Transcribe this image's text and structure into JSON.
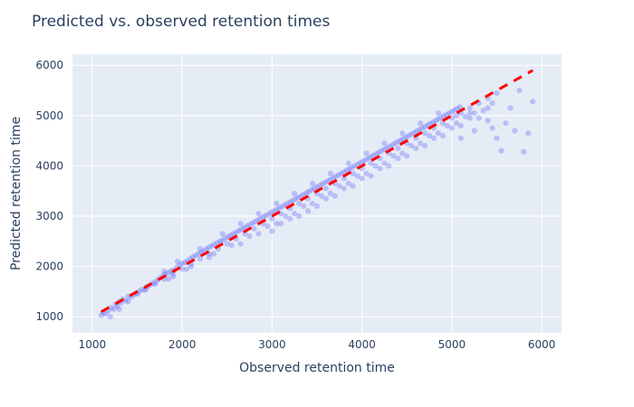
{
  "chart_data": {
    "type": "scatter",
    "title": "Predicted vs. observed retention times",
    "xlabel": "Observed retention time",
    "ylabel": "Predicted retention time",
    "xlim": [
      780,
      6220
    ],
    "ylim": [
      680,
      6220
    ],
    "x_ticks": [
      1000,
      2000,
      3000,
      4000,
      5000,
      6000
    ],
    "y_ticks": [
      1000,
      2000,
      3000,
      4000,
      5000,
      6000
    ],
    "grid": true,
    "legend": "none",
    "series": [
      {
        "type": "scatter",
        "color": "#636efa",
        "opacity": 0.35,
        "points": [
          [
            1100,
            1030
          ],
          [
            1120,
            1080
          ],
          [
            1150,
            1060
          ],
          [
            1180,
            1120
          ],
          [
            1210,
            1180
          ],
          [
            1240,
            1150
          ],
          [
            1260,
            1250
          ],
          [
            1280,
            1210
          ],
          [
            1300,
            1300
          ],
          [
            1320,
            1280
          ],
          [
            1340,
            1350
          ],
          [
            1370,
            1320
          ],
          [
            1400,
            1410
          ],
          [
            1430,
            1390
          ],
          [
            1460,
            1430
          ],
          [
            1490,
            1470
          ],
          [
            1520,
            1500
          ],
          [
            1550,
            1540
          ],
          [
            1580,
            1530
          ],
          [
            1610,
            1600
          ],
          [
            1640,
            1630
          ],
          [
            1670,
            1660
          ],
          [
            1700,
            1690
          ],
          [
            1730,
            1740
          ],
          [
            1760,
            1780
          ],
          [
            1790,
            1820
          ],
          [
            1820,
            1850
          ],
          [
            1850,
            1880
          ],
          [
            1880,
            1910
          ],
          [
            1910,
            1930
          ],
          [
            1940,
            1980
          ],
          [
            1970,
            2020
          ],
          [
            2000,
            2060
          ],
          [
            2030,
            2080
          ],
          [
            2060,
            2110
          ],
          [
            2090,
            2150
          ],
          [
            2120,
            2190
          ],
          [
            2150,
            2220
          ],
          [
            2180,
            2250
          ],
          [
            2210,
            2280
          ],
          [
            2240,
            2310
          ],
          [
            2270,
            2350
          ],
          [
            2300,
            2380
          ],
          [
            2330,
            2410
          ],
          [
            2360,
            2440
          ],
          [
            2390,
            2470
          ],
          [
            2420,
            2500
          ],
          [
            2450,
            2520
          ],
          [
            2480,
            2560
          ],
          [
            2510,
            2590
          ],
          [
            2540,
            2620
          ],
          [
            2570,
            2650
          ],
          [
            2600,
            2680
          ],
          [
            2630,
            2710
          ],
          [
            2660,
            2740
          ],
          [
            2690,
            2770
          ],
          [
            2720,
            2800
          ],
          [
            2750,
            2830
          ],
          [
            2780,
            2860
          ],
          [
            2810,
            2890
          ],
          [
            2840,
            2920
          ],
          [
            2870,
            2950
          ],
          [
            2900,
            2980
          ],
          [
            2930,
            3010
          ],
          [
            2960,
            3040
          ],
          [
            2990,
            3070
          ],
          [
            3020,
            3100
          ],
          [
            3050,
            3130
          ],
          [
            3080,
            3160
          ],
          [
            3110,
            3190
          ],
          [
            3140,
            3220
          ],
          [
            3170,
            3250
          ],
          [
            3200,
            3280
          ],
          [
            3230,
            3310
          ],
          [
            3260,
            3340
          ],
          [
            3290,
            3370
          ],
          [
            3320,
            3400
          ],
          [
            3350,
            3430
          ],
          [
            3380,
            3460
          ],
          [
            3410,
            3490
          ],
          [
            3440,
            3520
          ],
          [
            3470,
            3550
          ],
          [
            3500,
            3580
          ],
          [
            3530,
            3610
          ],
          [
            3560,
            3640
          ],
          [
            3590,
            3670
          ],
          [
            3620,
            3700
          ],
          [
            3650,
            3730
          ],
          [
            3680,
            3760
          ],
          [
            3710,
            3790
          ],
          [
            3740,
            3820
          ],
          [
            3770,
            3850
          ],
          [
            3800,
            3880
          ],
          [
            3830,
            3910
          ],
          [
            3860,
            3940
          ],
          [
            3890,
            3970
          ],
          [
            3920,
            4000
          ],
          [
            3950,
            4030
          ],
          [
            3980,
            4060
          ],
          [
            4010,
            4090
          ],
          [
            4040,
            4120
          ],
          [
            4070,
            4150
          ],
          [
            4100,
            4180
          ],
          [
            4130,
            4210
          ],
          [
            4160,
            4240
          ],
          [
            4190,
            4270
          ],
          [
            4220,
            4300
          ],
          [
            4250,
            4330
          ],
          [
            4280,
            4360
          ],
          [
            4310,
            4390
          ],
          [
            4340,
            4420
          ],
          [
            4370,
            4450
          ],
          [
            4400,
            4480
          ],
          [
            4430,
            4510
          ],
          [
            4460,
            4540
          ],
          [
            4490,
            4570
          ],
          [
            4520,
            4600
          ],
          [
            4550,
            4630
          ],
          [
            4580,
            4660
          ],
          [
            4610,
            4690
          ],
          [
            4640,
            4720
          ],
          [
            4670,
            4750
          ],
          [
            4700,
            4780
          ],
          [
            4730,
            4810
          ],
          [
            4760,
            4840
          ],
          [
            4790,
            4870
          ],
          [
            4820,
            4900
          ],
          [
            4850,
            4930
          ],
          [
            4880,
            4960
          ],
          [
            4910,
            4990
          ],
          [
            4940,
            5020
          ],
          [
            4970,
            5050
          ],
          [
            5000,
            5080
          ],
          [
            5030,
            5110
          ],
          [
            5060,
            5140
          ],
          [
            5090,
            5170
          ],
          [
            1800,
            1900
          ],
          [
            1850,
            1750
          ],
          [
            1950,
            2100
          ],
          [
            2050,
            1950
          ],
          [
            2200,
            2350
          ],
          [
            2300,
            2180
          ],
          [
            2450,
            2650
          ],
          [
            2550,
            2420
          ],
          [
            2650,
            2850
          ],
          [
            2750,
            2600
          ],
          [
            2850,
            3050
          ],
          [
            2950,
            2800
          ],
          [
            3050,
            3250
          ],
          [
            3150,
            3000
          ],
          [
            3250,
            3450
          ],
          [
            3350,
            3200
          ],
          [
            3450,
            3650
          ],
          [
            3550,
            3400
          ],
          [
            3650,
            3850
          ],
          [
            3750,
            3600
          ],
          [
            3850,
            4050
          ],
          [
            3950,
            3800
          ],
          [
            4050,
            4250
          ],
          [
            4150,
            4000
          ],
          [
            4250,
            4450
          ],
          [
            4350,
            4200
          ],
          [
            4450,
            4650
          ],
          [
            4550,
            4400
          ],
          [
            4650,
            4850
          ],
          [
            4750,
            4600
          ],
          [
            4850,
            5050
          ],
          [
            4950,
            4800
          ],
          [
            5050,
            5000
          ],
          [
            5100,
            4550
          ],
          [
            5150,
            4980
          ],
          [
            5200,
            5050
          ],
          [
            5250,
            4700
          ],
          [
            5300,
            4950
          ],
          [
            5350,
            5100
          ],
          [
            5400,
            4900
          ],
          [
            5450,
            4750
          ],
          [
            5500,
            4550
          ],
          [
            5550,
            4300
          ],
          [
            5600,
            4850
          ],
          [
            5650,
            5150
          ],
          [
            5700,
            4700
          ],
          [
            5750,
            5500
          ],
          [
            5800,
            4280
          ],
          [
            5850,
            4650
          ],
          [
            5900,
            5280
          ],
          [
            3200,
            2950
          ],
          [
            3400,
            3100
          ],
          [
            3600,
            3350
          ],
          [
            3800,
            3550
          ],
          [
            4000,
            3750
          ],
          [
            4200,
            3950
          ],
          [
            4400,
            4150
          ],
          [
            4600,
            4350
          ],
          [
            4800,
            4550
          ],
          [
            5000,
            4750
          ],
          [
            5200,
            4950
          ],
          [
            5400,
            5150
          ],
          [
            3000,
            2700
          ],
          [
            3100,
            2850
          ],
          [
            3300,
            3000
          ],
          [
            3500,
            3200
          ],
          [
            3700,
            3400
          ],
          [
            3900,
            3600
          ],
          [
            4100,
            3800
          ],
          [
            4300,
            4000
          ],
          [
            4500,
            4200
          ],
          [
            4700,
            4400
          ],
          [
            4900,
            4600
          ],
          [
            5100,
            4800
          ],
          [
            1900,
            1800
          ],
          [
            2100,
            2000
          ],
          [
            2350,
            2250
          ],
          [
            2650,
            2450
          ],
          [
            2850,
            2650
          ],
          [
            3050,
            2850
          ],
          [
            3250,
            3050
          ],
          [
            3450,
            3250
          ],
          [
            3650,
            3450
          ],
          [
            3850,
            3650
          ],
          [
            4050,
            3850
          ],
          [
            4250,
            4050
          ],
          [
            4450,
            4250
          ],
          [
            4650,
            4450
          ],
          [
            4850,
            4650
          ],
          [
            5050,
            4850
          ],
          [
            5250,
            5050
          ],
          [
            5450,
            5250
          ],
          [
            1200,
            1000
          ],
          [
            1300,
            1150
          ],
          [
            1400,
            1300
          ],
          [
            1500,
            1450
          ],
          [
            1600,
            1550
          ],
          [
            1700,
            1650
          ],
          [
            1800,
            1750
          ],
          [
            1900,
            1850
          ],
          [
            2000,
            1950
          ],
          [
            2100,
            2050
          ],
          [
            2200,
            2150
          ],
          [
            2300,
            2250
          ],
          [
            2400,
            2350
          ],
          [
            2500,
            2450
          ],
          [
            2600,
            2550
          ],
          [
            2700,
            2650
          ],
          [
            2800,
            2750
          ],
          [
            2900,
            2850
          ],
          [
            3000,
            2950
          ],
          [
            3100,
            3050
          ],
          [
            3200,
            3150
          ],
          [
            3300,
            3250
          ],
          [
            3400,
            3350
          ],
          [
            3500,
            3450
          ],
          [
            3600,
            3550
          ],
          [
            3700,
            3650
          ],
          [
            3800,
            3750
          ],
          [
            3900,
            3850
          ],
          [
            4000,
            3950
          ],
          [
            4100,
            4050
          ],
          [
            4200,
            4150
          ],
          [
            4300,
            4250
          ],
          [
            4400,
            4350
          ],
          [
            4500,
            4450
          ],
          [
            4600,
            4550
          ],
          [
            4700,
            4650
          ],
          [
            4800,
            4750
          ],
          [
            4900,
            4850
          ],
          [
            5000,
            4950
          ],
          [
            5100,
            5050
          ],
          [
            5200,
            5150
          ],
          [
            5300,
            5250
          ],
          [
            5400,
            5350
          ],
          [
            5500,
            5450
          ]
        ]
      },
      {
        "type": "line",
        "color": "#ff0000",
        "dash": true,
        "points": [
          [
            1100,
            1100
          ],
          [
            5900,
            5900
          ]
        ]
      }
    ]
  }
}
